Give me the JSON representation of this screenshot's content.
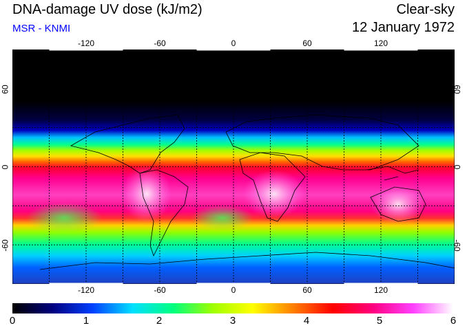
{
  "header": {
    "title": "DNA-damage UV dose (kJ/m2)",
    "credit": "MSR - KNMI",
    "sky_condition": "Clear-sky",
    "date": "12 January 1972"
  },
  "map": {
    "longitude_ticks_top": [
      "-120",
      "-60",
      "0",
      "60",
      "120"
    ],
    "longitude_ticks_bottom": [
      "-120",
      "-60",
      "0",
      "60",
      "120"
    ],
    "latitude_ticks_left": [
      "60",
      "0",
      "-60"
    ],
    "latitude_ticks_right": [
      "60",
      "0",
      "-60"
    ],
    "lon_range": [
      -180,
      180
    ],
    "lat_range": [
      -90,
      90
    ]
  },
  "colorbar": {
    "min": 0,
    "max": 6,
    "labels": [
      "0",
      "1",
      "2",
      "3",
      "4",
      "5",
      "6"
    ],
    "colors": [
      "#000000",
      "#000080",
      "#0040ff",
      "#00e0ff",
      "#00ff80",
      "#a0ff00",
      "#ffff00",
      "#ff8000",
      "#ff0000",
      "#ff0080",
      "#ff40ff",
      "#ffffff"
    ]
  }
}
